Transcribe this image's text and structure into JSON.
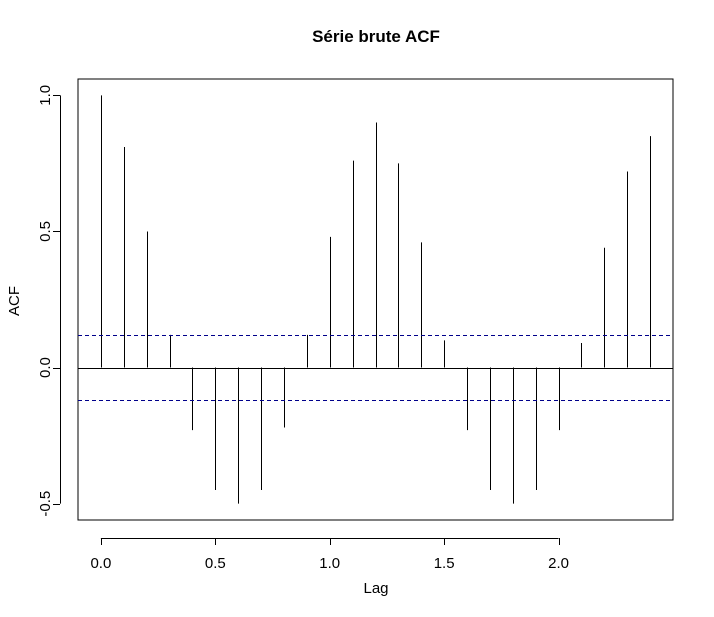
{
  "chart_data": {
    "type": "bar",
    "title": "Série brute ACF",
    "xlabel": "Lag",
    "ylabel": "ACF",
    "x": [
      0.0,
      0.1,
      0.2,
      0.3,
      0.4,
      0.5,
      0.6,
      0.7,
      0.8,
      0.9,
      1.0,
      1.1,
      1.2,
      1.3,
      1.4,
      1.5,
      1.6,
      1.7,
      1.8,
      1.9,
      2.0,
      2.1,
      2.2,
      2.3,
      2.4
    ],
    "values": [
      1.0,
      0.81,
      0.5,
      0.12,
      -0.23,
      -0.45,
      -0.5,
      -0.45,
      -0.22,
      0.12,
      0.48,
      0.76,
      0.9,
      0.75,
      0.46,
      0.1,
      -0.23,
      -0.45,
      -0.5,
      -0.45,
      -0.23,
      0.09,
      0.44,
      0.72,
      0.85
    ],
    "confidence_bounds": [
      0.12,
      -0.12
    ],
    "xlim": [
      -0.1,
      2.5
    ],
    "ylim": [
      -0.56,
      1.06
    ],
    "x_ticks": [
      0.0,
      0.5,
      1.0,
      1.5,
      2.0
    ],
    "x_tick_labels": [
      "0.0",
      "0.5",
      "1.0",
      "1.5",
      "2.0"
    ],
    "y_ticks": [
      -0.5,
      0.0,
      0.5,
      1.0
    ],
    "y_tick_labels": [
      "-0.5",
      "0.0",
      "0.5",
      "1.0"
    ],
    "grid": false,
    "colors": {
      "bars": "#000000",
      "confidence": "#00008b",
      "zero_line": "#000000"
    }
  }
}
